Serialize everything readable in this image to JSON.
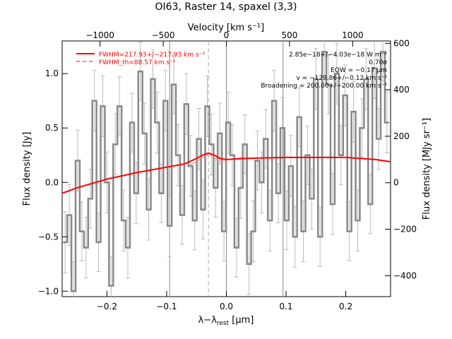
{
  "chart_data": {
    "type": "line",
    "title": "OI63, Raster 14, spaxel (3,3)",
    "xlabel": "λ−λ",
    "xlabel_sub": "rest",
    "xlabel_unit": " [μm]",
    "ylabel": "Flux density [Jy]",
    "top_xlabel": "Velocity [km s⁻¹]",
    "right_ylabel": "Flux density [MJy sr⁻¹]",
    "xlim": [
      -0.275,
      0.275
    ],
    "ylim": [
      -1.05,
      1.3
    ],
    "top_xlim": [
      -1300,
      1300
    ],
    "right_ylim": [
      -490,
      610
    ],
    "x_ticks": [
      -0.2,
      -0.1,
      0.0,
      0.1,
      0.2
    ],
    "x_tick_labels": [
      "−0.2",
      "−0.1",
      "0.0",
      "0.1",
      "0.2"
    ],
    "y_ticks": [
      -1.0,
      -0.5,
      0.0,
      0.5,
      1.0
    ],
    "y_tick_labels": [
      "−1.0",
      "−0.5",
      "0.0",
      "0.5",
      "1.0"
    ],
    "top_ticks": [
      -1000,
      -500,
      0,
      500,
      1000
    ],
    "top_tick_labels": [
      "−1000",
      "−500",
      "0",
      "500",
      "1000"
    ],
    "right_ticks": [
      -400,
      -200,
      0,
      200,
      400,
      600
    ],
    "right_tick_labels": [
      "−400",
      "−200",
      "0",
      "200",
      "400",
      "600"
    ],
    "vertical_lines_solid_x": [
      -0.095,
      0.0,
      0.095
    ],
    "vertical_line_dashed_x": -0.03,
    "legend": {
      "placement": "top-left",
      "entries": [
        {
          "label": "FWHM=217.93+/−217.93 km s⁻¹",
          "style": "solid",
          "color": "#ff0000"
        },
        {
          "label": "FWHM_th=88.57 km s⁻¹",
          "style": "dashed",
          "color": "#ff0000"
        }
      ]
    },
    "annotations": [
      "2.85e−18+/−4.03e−18 W m⁻²",
      "0.70σ",
      "EQW = −0.17 μm",
      "v = −129.86+/−0.12 km s⁻¹",
      "Broadening = 200.00+/−200.00 km s⁻¹"
    ],
    "series": [
      {
        "style": "steps",
        "color": "#888888",
        "x": [
          -0.27,
          -0.263,
          -0.256,
          -0.249,
          -0.242,
          -0.235,
          -0.228,
          -0.221,
          -0.214,
          -0.207,
          -0.2,
          -0.193,
          -0.186,
          -0.179,
          -0.172,
          -0.165,
          -0.158,
          -0.151,
          -0.144,
          -0.137,
          -0.13,
          -0.123,
          -0.116,
          -0.109,
          -0.102,
          -0.095,
          -0.088,
          -0.081,
          -0.074,
          -0.067,
          -0.06,
          -0.053,
          -0.046,
          -0.039,
          -0.032,
          -0.025,
          -0.018,
          -0.011,
          -0.004,
          0.003,
          0.01,
          0.017,
          0.024,
          0.031,
          0.038,
          0.045,
          0.052,
          0.059,
          0.066,
          0.073,
          0.08,
          0.087,
          0.094,
          0.101,
          0.108,
          0.115,
          0.122,
          0.129,
          0.136,
          0.143,
          0.15,
          0.157,
          0.164,
          0.171,
          0.178,
          0.185,
          0.192,
          0.199,
          0.206,
          0.213,
          0.22,
          0.227,
          0.234,
          0.241,
          0.248,
          0.255,
          0.262,
          0.269
        ],
        "values": [
          -0.55,
          -0.3,
          -1.0,
          0.2,
          -0.45,
          -0.6,
          -0.15,
          0.75,
          -0.55,
          0.7,
          0.0,
          -0.95,
          0.35,
          0.7,
          -0.35,
          -0.6,
          0.55,
          -0.1,
          1.02,
          0.45,
          -0.25,
          0.95,
          0.55,
          -0.1,
          0.75,
          -0.4,
          0.9,
          0.25,
          -0.3,
          0.72,
          0.15,
          -0.35,
          0.4,
          -0.25,
          0.7,
          0.35,
          -0.05,
          0.45,
          -0.45,
          0.55,
          0.25,
          -0.6,
          -0.05,
          0.35,
          -0.75,
          -0.45,
          0.2,
          0.0,
          0.4,
          -0.35,
          0.75,
          -0.1,
          0.5,
          -0.35,
          0.15,
          -0.5,
          0.6,
          -0.45,
          0.25,
          -0.15,
          0.95,
          -0.5,
          1.2,
          0.9,
          -0.2,
          1.0,
          0.25,
          0.8,
          -0.45,
          0.65,
          -0.35,
          0.5,
          0.95,
          -0.2,
          1.05,
          0.4,
          1.2,
          0.55
        ],
        "errors": [
          0.28,
          0.28,
          0.27,
          0.28,
          0.27,
          0.28,
          0.27,
          0.28,
          0.27,
          0.28,
          0.28,
          0.27,
          0.28,
          0.27,
          0.28,
          0.28,
          0.27,
          0.28,
          0.27,
          0.28,
          0.28,
          0.27,
          0.28,
          0.27,
          0.28,
          0.28,
          0.27,
          0.28,
          0.27,
          0.28,
          0.28,
          0.27,
          0.28,
          0.27,
          0.28,
          0.28,
          0.27,
          0.28,
          0.27,
          0.28,
          0.28,
          0.27,
          0.28,
          0.27,
          0.28,
          0.28,
          0.27,
          0.28,
          0.27,
          0.28,
          0.28,
          0.27,
          0.28,
          0.27,
          0.28,
          0.28,
          0.27,
          0.28,
          0.27,
          0.28,
          0.28,
          0.27,
          0.28,
          0.27,
          0.28,
          0.28,
          0.27,
          0.28,
          0.27,
          0.28,
          0.28,
          0.27,
          0.28,
          0.27,
          0.28,
          0.28,
          0.27,
          0.28
        ]
      },
      {
        "style": "line",
        "color": "#ff0000",
        "x": [
          -0.275,
          -0.25,
          -0.2,
          -0.15,
          -0.1,
          -0.07,
          -0.05,
          -0.04,
          -0.03,
          -0.02,
          -0.01,
          0.0,
          0.03,
          0.1,
          0.15,
          0.2,
          0.25,
          0.275
        ],
        "values": [
          -0.1,
          -0.05,
          0.03,
          0.09,
          0.14,
          0.17,
          0.22,
          0.25,
          0.27,
          0.25,
          0.22,
          0.21,
          0.22,
          0.23,
          0.23,
          0.23,
          0.21,
          0.19
        ]
      },
      {
        "style": "line",
        "color": "#ff8888",
        "x": [
          -0.06,
          -0.045,
          -0.03,
          -0.015,
          0.0
        ],
        "values": [
          0.16,
          0.21,
          0.26,
          0.21,
          0.19
        ]
      }
    ]
  }
}
